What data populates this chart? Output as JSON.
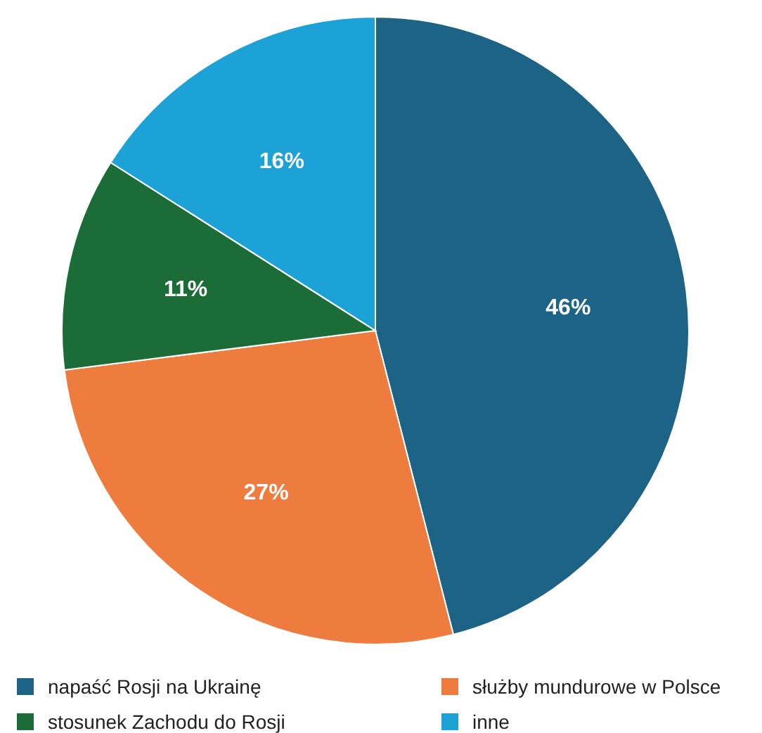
{
  "chart_data": {
    "type": "pie",
    "categories": [
      "napaść Rosji na Ukrainę",
      "służby mundurowe w Polsce",
      "stosunek Zachodu do Rosji",
      "inne"
    ],
    "values": [
      46,
      27,
      11,
      16
    ],
    "colors": [
      "#1d6385",
      "#ee7c3f",
      "#1b6c36",
      "#1ca2d7"
    ],
    "value_labels": [
      "46%",
      "27%",
      "11%",
      "16%"
    ],
    "legend": "bottom"
  }
}
